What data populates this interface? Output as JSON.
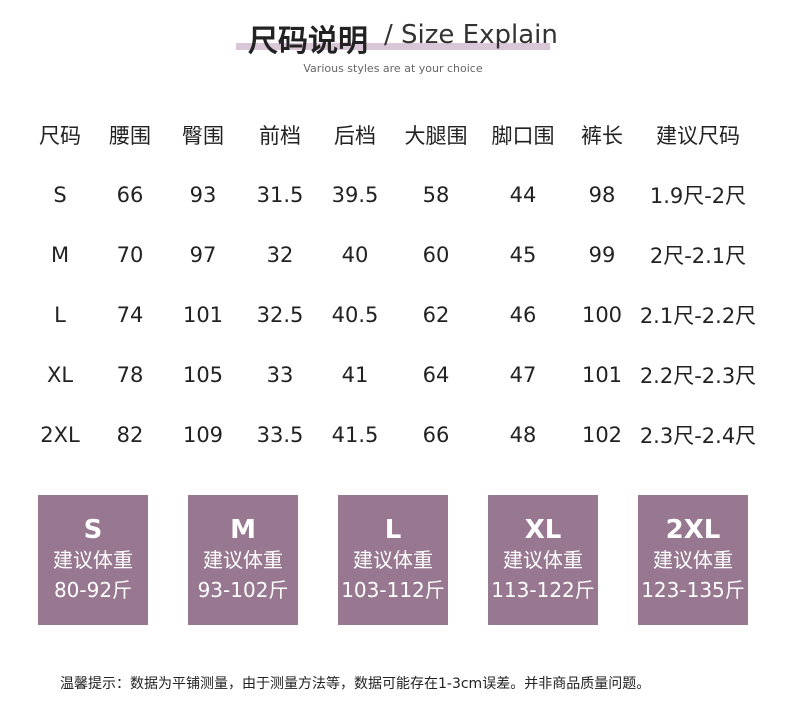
{
  "header": {
    "title": "尺码说明",
    "title_en": "/ Size Explain",
    "subtitle": "Various styles are at your choice"
  },
  "table": {
    "columns": [
      "尺码",
      "腰围",
      "臀围",
      "前档",
      "后档",
      "大腿围",
      "脚口围",
      "裤长",
      "建议尺码"
    ],
    "rows": [
      [
        "S",
        "66",
        "93",
        "31.5",
        "39.5",
        "58",
        "44",
        "98",
        "1.9尺-2尺"
      ],
      [
        "M",
        "70",
        "97",
        "32",
        "40",
        "60",
        "45",
        "99",
        "2尺-2.1尺"
      ],
      [
        "L",
        "74",
        "101",
        "32.5",
        "40.5",
        "62",
        "46",
        "100",
        "2.1尺-2.2尺"
      ],
      [
        "XL",
        "78",
        "105",
        "33",
        "41",
        "64",
        "47",
        "101",
        "2.2尺-2.3尺"
      ],
      [
        "2XL",
        "82",
        "109",
        "33.5",
        "41.5",
        "66",
        "48",
        "102",
        "2.3尺-2.4尺"
      ]
    ]
  },
  "cards": [
    {
      "size": "S",
      "label": "建议体重",
      "weight": "80-92斤"
    },
    {
      "size": "M",
      "label": "建议体重",
      "weight": "93-102斤"
    },
    {
      "size": "L",
      "label": "建议体重",
      "weight": "103-112斤"
    },
    {
      "size": "XL",
      "label": "建议体重",
      "weight": "113-122斤"
    },
    {
      "size": "2XL",
      "label": "建议体重",
      "weight": "123-135斤"
    }
  ],
  "note": "温馨提示：数据为平铺测量，由于测量方法等，数据可能存在1-3cm误差。并非商品质量问题。"
}
